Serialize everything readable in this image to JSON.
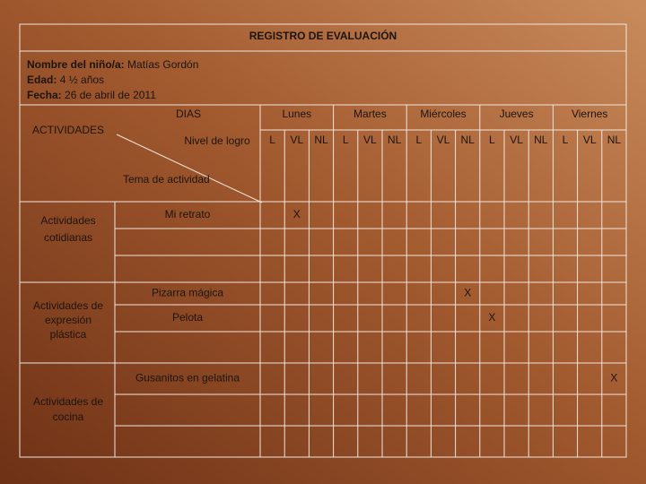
{
  "title": "REGISTRO DE EVALUACIÓN",
  "info": [
    {
      "label": "Nombre del niño/a:",
      "value": "Matías Gordón"
    },
    {
      "label": "Edad:",
      "value": "4 ½ años"
    },
    {
      "label": "Fecha:",
      "value": "26 de abril de 2011"
    }
  ],
  "header": {
    "activities": "ACTIVIDADES",
    "days_label": "DIAS",
    "level_label": "Nivel de logro",
    "topic_label": "Tema de actividad",
    "days": [
      "Lunes",
      "Martes",
      "Miércoles",
      "Jueves",
      "Viernes"
    ],
    "levels": [
      "L",
      "VL",
      "NL"
    ]
  },
  "groups": [
    {
      "name": "Actividades cotidianas",
      "rows": [
        {
          "activity": "Mi retrato",
          "cells": [
            null,
            "X",
            null,
            null,
            null,
            null,
            null,
            null,
            null,
            null,
            null,
            null,
            null,
            null,
            null
          ]
        },
        {
          "activity": null,
          "cells": [
            null,
            null,
            null,
            null,
            null,
            null,
            null,
            null,
            null,
            null,
            null,
            null,
            null,
            null,
            null
          ]
        },
        {
          "activity": null,
          "cells": [
            null,
            null,
            null,
            null,
            null,
            null,
            null,
            null,
            null,
            null,
            null,
            null,
            null,
            null,
            null
          ]
        }
      ]
    },
    {
      "name": "Actividades de expresión plástica",
      "rows": [
        {
          "activity": "Pizarra mágica",
          "cells": [
            null,
            null,
            null,
            null,
            null,
            null,
            null,
            null,
            "X",
            null,
            null,
            null,
            null,
            null,
            null
          ]
        },
        {
          "activity": "Pelota",
          "cells": [
            null,
            null,
            null,
            null,
            null,
            null,
            null,
            null,
            null,
            "X",
            null,
            null,
            null,
            null,
            null
          ]
        },
        {
          "activity": null,
          "cells": [
            null,
            null,
            null,
            null,
            null,
            null,
            null,
            null,
            null,
            null,
            null,
            null,
            null,
            null,
            null
          ]
        }
      ]
    },
    {
      "name": "Actividades de cocina",
      "rows": [
        {
          "activity": "Gusanitos en gelatina",
          "cells": [
            null,
            null,
            null,
            null,
            null,
            null,
            null,
            null,
            null,
            null,
            null,
            null,
            null,
            null,
            "X"
          ]
        },
        {
          "activity": null,
          "cells": [
            null,
            null,
            null,
            null,
            null,
            null,
            null,
            null,
            null,
            null,
            null,
            null,
            null,
            null,
            null
          ]
        },
        {
          "activity": null,
          "cells": [
            null,
            null,
            null,
            null,
            null,
            null,
            null,
            null,
            null,
            null,
            null,
            null,
            null,
            null,
            null
          ]
        }
      ]
    }
  ]
}
